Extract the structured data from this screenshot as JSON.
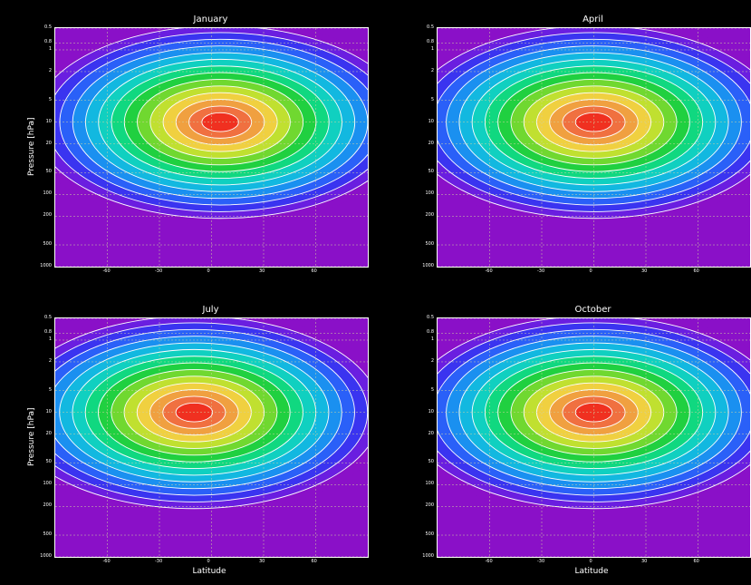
{
  "chart_data": [
    {
      "type": "heatmap",
      "title": "January",
      "ylabel": "Pressure [hPa]",
      "xlabel": "",
      "x_ticks": [
        "-60",
        "-30",
        "0",
        "30",
        "60"
      ],
      "y_ticks": [
        "0.5",
        "0.8",
        "1",
        "2",
        "5",
        "10",
        "20",
        "50",
        "100",
        "200",
        "500",
        "1000"
      ],
      "ylim": [
        1000,
        0.5
      ],
      "xlim": [
        -90,
        90
      ],
      "y_scale": "log",
      "grid": true,
      "peak": {
        "lat": 5,
        "pressure": 10
      }
    },
    {
      "type": "heatmap",
      "title": "April",
      "ylabel": "",
      "xlabel": "",
      "x_ticks": [
        "-60",
        "-30",
        "0",
        "30",
        "60"
      ],
      "y_ticks": [
        "0.5",
        "0.8",
        "1",
        "2",
        "5",
        "10",
        "20",
        "50",
        "100",
        "200",
        "500",
        "1000"
      ],
      "ylim": [
        1000,
        0.5
      ],
      "xlim": [
        -90,
        90
      ],
      "y_scale": "log",
      "grid": true,
      "peak": {
        "lat": 0,
        "pressure": 10
      }
    },
    {
      "type": "heatmap",
      "title": "July",
      "ylabel": "Pressure [hPa]",
      "xlabel": "Latitude",
      "x_ticks": [
        "-60",
        "-30",
        "0",
        "30",
        "60"
      ],
      "y_ticks": [
        "0.5",
        "0.8",
        "1",
        "2",
        "5",
        "10",
        "20",
        "50",
        "100",
        "200",
        "500",
        "1000"
      ],
      "ylim": [
        1000,
        0.5
      ],
      "xlim": [
        -90,
        90
      ],
      "y_scale": "log",
      "grid": true,
      "peak": {
        "lat": -10,
        "pressure": 10
      }
    },
    {
      "type": "heatmap",
      "title": "October",
      "ylabel": "",
      "xlabel": "Latitude",
      "x_ticks": [
        "-60",
        "-30",
        "0",
        "30",
        "60"
      ],
      "y_ticks": [
        "0.5",
        "0.8",
        "1",
        "2",
        "5",
        "10",
        "20",
        "50",
        "100",
        "200",
        "500",
        "1000"
      ],
      "ylim": [
        1000,
        0.5
      ],
      "xlim": [
        -90,
        90
      ],
      "y_scale": "log",
      "grid": true,
      "peak": {
        "lat": 0,
        "pressure": 10
      }
    }
  ],
  "colors": {
    "background": "#000000",
    "colormap": [
      "#8a10c8",
      "#6a1ee0",
      "#3a34f0",
      "#2a60f8",
      "#1a90f0",
      "#12b8e0",
      "#10d0c0",
      "#10d880",
      "#20d040",
      "#70d830",
      "#c0e030",
      "#f0d040",
      "#f0a040",
      "#f07040",
      "#f03020"
    ]
  }
}
